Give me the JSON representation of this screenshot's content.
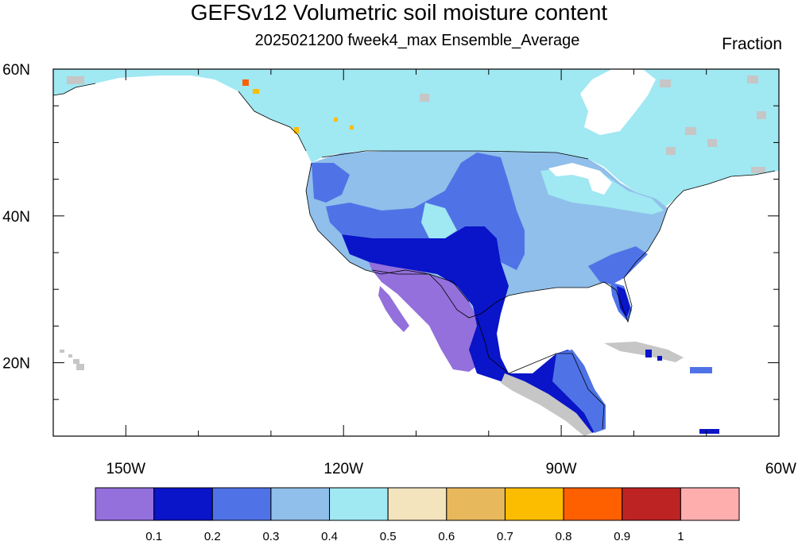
{
  "title": "GEFSv12 Volumetric soil moisture content",
  "subtitle": "2025021200 fweek4_max Ensemble_Average",
  "units": "Fraction",
  "map": {
    "lon_range": [
      -160,
      -60
    ],
    "lat_range": [
      10,
      60
    ],
    "lon_ticks": [
      {
        "value": -150,
        "label": "150W"
      },
      {
        "value": -120,
        "label": "120W"
      },
      {
        "value": -90,
        "label": "90W"
      },
      {
        "value": -60,
        "label": "60W"
      }
    ],
    "lat_ticks": [
      {
        "value": 60,
        "label": "60N"
      },
      {
        "value": 40,
        "label": "40N"
      },
      {
        "value": 20,
        "label": "20N"
      }
    ]
  },
  "colorbar": {
    "colors": [
      "#9370db",
      "#0a14c8",
      "#4f73e6",
      "#8fbfea",
      "#a0e8f2",
      "#f4e4be",
      "#e8b85c",
      "#fcbc00",
      "#fe6000",
      "#be2323",
      "#ffaeae"
    ],
    "labels": [
      "0.1",
      "0.2",
      "0.3",
      "0.4",
      "0.5",
      "0.6",
      "0.7",
      "0.8",
      "0.9",
      "1"
    ]
  },
  "palette": {
    "missing_land": "#c6c6c6",
    "outline": "#000000"
  }
}
